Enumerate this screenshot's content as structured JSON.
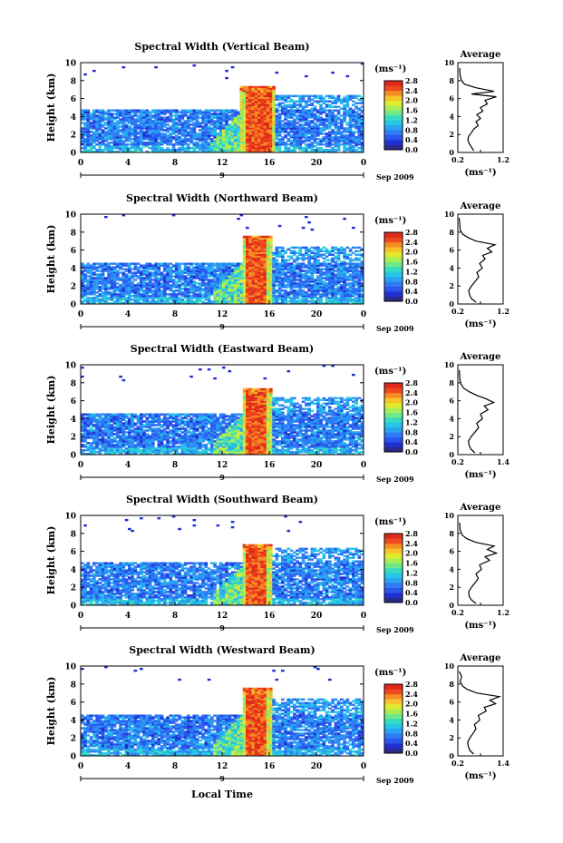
{
  "figure": {
    "x_axis_label": "Local Time",
    "x_date_suffix": "Sep 2009",
    "day_label": "9"
  },
  "colors": {
    "colormap": [
      "#2a2a8a",
      "#1f2fd0",
      "#2a55ee",
      "#2f7af5",
      "#29a3f2",
      "#26c7e6",
      "#34dcc0",
      "#6fe88a",
      "#a8ee55",
      "#e0ea2e",
      "#f6c42a",
      "#f78c24",
      "#ef4a1e",
      "#e02a1a"
    ],
    "background": "#ffffff"
  },
  "chart_data": [
    {
      "type": "heatmap",
      "title": "Spectral Width (Vertical Beam)",
      "xlabel": "",
      "ylabel": "Height (km)",
      "x_ticks": [
        "0",
        "4",
        "8",
        "12",
        "16",
        "20",
        "0"
      ],
      "xlim": [
        0,
        24
      ],
      "y_ticks": [
        "0",
        "2",
        "4",
        "6",
        "8",
        "10"
      ],
      "ylim": [
        0,
        10
      ],
      "date": "Sep 2009",
      "day": "9",
      "colorbar": {
        "unit": "(ms⁻¹)",
        "ticks": [
          "0.0",
          "0.4",
          "0.8",
          "1.2",
          "1.6",
          "2.0",
          "2.4",
          "2.8"
        ],
        "range": [
          0,
          2.8
        ]
      },
      "profile": {
        "title": "Average",
        "xlabel": "(ms⁻¹)",
        "x_ticks": [
          "0.2",
          "0.7",
          "1.2"
        ],
        "xlim": [
          0.2,
          1.2
        ],
        "y_ticks": [
          "0",
          "2",
          "4",
          "6",
          "8",
          "10"
        ],
        "ylim": [
          0,
          10
        ],
        "points": [
          [
            0.55,
            0.2
          ],
          [
            0.5,
            0.6
          ],
          [
            0.45,
            1.0
          ],
          [
            0.42,
            1.4
          ],
          [
            0.44,
            1.8
          ],
          [
            0.5,
            2.2
          ],
          [
            0.55,
            2.6
          ],
          [
            0.65,
            3.0
          ],
          [
            0.6,
            3.4
          ],
          [
            0.7,
            3.8
          ],
          [
            0.62,
            4.2
          ],
          [
            0.75,
            4.6
          ],
          [
            0.7,
            5.0
          ],
          [
            0.85,
            5.4
          ],
          [
            0.8,
            5.8
          ],
          [
            1.05,
            6.2
          ],
          [
            0.5,
            6.5
          ],
          [
            1.0,
            6.8
          ],
          [
            0.6,
            7.2
          ],
          [
            0.35,
            7.6
          ],
          [
            0.28,
            8.0
          ],
          [
            0.25,
            8.6
          ],
          [
            0.24,
            9.4
          ]
        ]
      },
      "field": {
        "base_max_km": 4.8,
        "base_width": 0.7,
        "storm_start": 13.5,
        "storm_end": 16.3,
        "storm_top_km": 7.3,
        "storm_core_width": 2.8
      }
    },
    {
      "type": "heatmap",
      "title": "Spectral Width (Northward Beam)",
      "xlabel": "",
      "ylabel": "Height (km)",
      "x_ticks": [
        "0",
        "4",
        "8",
        "12",
        "16",
        "20",
        "0"
      ],
      "xlim": [
        0,
        24
      ],
      "y_ticks": [
        "0",
        "2",
        "4",
        "6",
        "8",
        "10"
      ],
      "ylim": [
        0,
        10
      ],
      "date": "Sep 2009",
      "day": "9",
      "colorbar": {
        "unit": "(ms⁻¹)",
        "ticks": [
          "0.0",
          "0.4",
          "0.8",
          "1.2",
          "1.6",
          "2.0",
          "2.4",
          "2.8"
        ],
        "range": [
          0,
          2.8
        ]
      },
      "profile": {
        "title": "Average",
        "xlabel": "(ms⁻¹)",
        "x_ticks": [
          "0.2",
          "0.7",
          "1.2"
        ],
        "xlim": [
          0.2,
          1.2
        ],
        "y_ticks": [
          "0",
          "2",
          "4",
          "6",
          "8",
          "10"
        ],
        "ylim": [
          0,
          10
        ],
        "points": [
          [
            0.6,
            0.2
          ],
          [
            0.5,
            0.6
          ],
          [
            0.46,
            1.0
          ],
          [
            0.44,
            1.5
          ],
          [
            0.5,
            2.0
          ],
          [
            0.58,
            2.5
          ],
          [
            0.66,
            3.0
          ],
          [
            0.62,
            3.5
          ],
          [
            0.74,
            4.0
          ],
          [
            0.68,
            4.5
          ],
          [
            0.8,
            5.0
          ],
          [
            0.75,
            5.4
          ],
          [
            0.95,
            5.8
          ],
          [
            0.85,
            6.2
          ],
          [
            1.02,
            6.6
          ],
          [
            0.6,
            7.0
          ],
          [
            0.42,
            7.4
          ],
          [
            0.3,
            7.8
          ],
          [
            0.25,
            8.3
          ],
          [
            0.24,
            9.0
          ],
          [
            0.23,
            9.6
          ]
        ]
      },
      "field": {
        "base_max_km": 4.6,
        "base_width": 0.7,
        "storm_start": 13.6,
        "storm_end": 16.0,
        "storm_top_km": 7.6,
        "storm_core_width": 2.8
      }
    },
    {
      "type": "heatmap",
      "title": "Spectral Width (Eastward Beam)",
      "xlabel": "",
      "ylabel": "Height (km)",
      "x_ticks": [
        "0",
        "4",
        "8",
        "12",
        "16",
        "20",
        "0"
      ],
      "xlim": [
        0,
        24
      ],
      "y_ticks": [
        "0",
        "2",
        "4",
        "6",
        "8",
        "10"
      ],
      "ylim": [
        0,
        10
      ],
      "date": "Sep 2009",
      "day": "9",
      "colorbar": {
        "unit": "(ms⁻¹)",
        "ticks": [
          "0.0",
          "0.4",
          "0.8",
          "1.2",
          "1.6",
          "2.0",
          "2.4",
          "2.8"
        ],
        "range": [
          0,
          2.8
        ]
      },
      "profile": {
        "title": "Average",
        "xlabel": "(ms⁻¹)",
        "x_ticks": [
          "0.2",
          "0.8",
          "1.4"
        ],
        "xlim": [
          0.2,
          1.4
        ],
        "y_ticks": [
          "0",
          "2",
          "4",
          "6",
          "8",
          "10"
        ],
        "ylim": [
          0,
          10
        ],
        "points": [
          [
            0.65,
            0.2
          ],
          [
            0.55,
            0.6
          ],
          [
            0.5,
            1.0
          ],
          [
            0.48,
            1.5
          ],
          [
            0.55,
            2.0
          ],
          [
            0.65,
            2.5
          ],
          [
            0.75,
            3.0
          ],
          [
            0.7,
            3.5
          ],
          [
            0.85,
            4.0
          ],
          [
            0.8,
            4.5
          ],
          [
            1.0,
            5.0
          ],
          [
            0.9,
            5.4
          ],
          [
            1.15,
            5.8
          ],
          [
            0.95,
            6.2
          ],
          [
            0.7,
            6.6
          ],
          [
            0.5,
            7.0
          ],
          [
            0.35,
            7.4
          ],
          [
            0.28,
            7.9
          ],
          [
            0.25,
            8.5
          ],
          [
            0.24,
            9.4
          ]
        ]
      },
      "field": {
        "base_max_km": 4.4,
        "base_width": 0.7,
        "storm_start": 13.6,
        "storm_end": 16.0,
        "storm_top_km": 7.2,
        "storm_core_width": 2.8
      }
    },
    {
      "type": "heatmap",
      "title": "Spectral Width (Southward Beam)",
      "xlabel": "",
      "ylabel": "Height (km)",
      "x_ticks": [
        "0",
        "4",
        "8",
        "12",
        "16",
        "20",
        "0"
      ],
      "xlim": [
        0,
        24
      ],
      "y_ticks": [
        "0",
        "2",
        "4",
        "6",
        "8",
        "10"
      ],
      "ylim": [
        0,
        10
      ],
      "date": "Sep 2009",
      "day": "9",
      "colorbar": {
        "unit": "(ms⁻¹)",
        "ticks": [
          "0.0",
          "0.4",
          "0.8",
          "1.2",
          "1.6",
          "2.0",
          "2.4",
          "2.8"
        ],
        "range": [
          0,
          2.8
        ]
      },
      "profile": {
        "title": "Average",
        "xlabel": "(ms⁻¹)",
        "x_ticks": [
          "0.2",
          "0.7",
          "1.2"
        ],
        "xlim": [
          0.2,
          1.2
        ],
        "y_ticks": [
          "0",
          "2",
          "4",
          "6",
          "8",
          "10"
        ],
        "ylim": [
          0,
          10
        ],
        "points": [
          [
            0.6,
            0.2
          ],
          [
            0.5,
            0.6
          ],
          [
            0.45,
            1.0
          ],
          [
            0.44,
            1.5
          ],
          [
            0.5,
            2.0
          ],
          [
            0.58,
            2.5
          ],
          [
            0.65,
            3.0
          ],
          [
            0.6,
            3.5
          ],
          [
            0.72,
            4.0
          ],
          [
            0.68,
            4.5
          ],
          [
            0.9,
            5.0
          ],
          [
            0.8,
            5.4
          ],
          [
            1.05,
            5.8
          ],
          [
            0.85,
            6.2
          ],
          [
            1.0,
            6.6
          ],
          [
            0.6,
            7.0
          ],
          [
            0.4,
            7.4
          ],
          [
            0.3,
            7.8
          ],
          [
            0.25,
            8.4
          ],
          [
            0.24,
            9.2
          ]
        ]
      },
      "field": {
        "base_max_km": 4.8,
        "base_width": 0.7,
        "storm_start": 13.6,
        "storm_end": 16.0,
        "storm_top_km": 6.8,
        "storm_core_width": 2.8
      }
    },
    {
      "type": "heatmap",
      "title": "Spectral Width (Westward Beam)",
      "xlabel": "Local Time",
      "ylabel": "Height (km)",
      "x_ticks": [
        "0",
        "4",
        "8",
        "12",
        "16",
        "20",
        "0"
      ],
      "xlim": [
        0,
        24
      ],
      "y_ticks": [
        "0",
        "2",
        "4",
        "6",
        "8",
        "10"
      ],
      "ylim": [
        0,
        10
      ],
      "date": "Sep 2009",
      "day": "9",
      "colorbar": {
        "unit": "(ms⁻¹)",
        "ticks": [
          "0.0",
          "0.4",
          "0.8",
          "1.2",
          "1.6",
          "2.0",
          "2.4",
          "2.8"
        ],
        "range": [
          0,
          2.8
        ]
      },
      "profile": {
        "title": "Average",
        "xlabel": "(ms⁻¹)",
        "x_ticks": [
          "0.2",
          "0.8",
          "1.4"
        ],
        "xlim": [
          0.2,
          1.4
        ],
        "y_ticks": [
          "0",
          "2",
          "4",
          "6",
          "8",
          "10"
        ],
        "ylim": [
          0,
          10
        ],
        "points": [
          [
            0.62,
            0.2
          ],
          [
            0.52,
            0.6
          ],
          [
            0.48,
            1.0
          ],
          [
            0.46,
            1.5
          ],
          [
            0.52,
            2.0
          ],
          [
            0.6,
            2.5
          ],
          [
            0.68,
            3.0
          ],
          [
            0.64,
            3.5
          ],
          [
            0.78,
            4.0
          ],
          [
            0.74,
            4.5
          ],
          [
            0.95,
            5.0
          ],
          [
            0.9,
            5.4
          ],
          [
            1.2,
            5.8
          ],
          [
            1.05,
            6.2
          ],
          [
            1.3,
            6.6
          ],
          [
            0.7,
            7.0
          ],
          [
            0.45,
            7.4
          ],
          [
            0.32,
            7.8
          ],
          [
            0.26,
            8.3
          ],
          [
            0.3,
            8.8
          ],
          [
            0.24,
            9.4
          ]
        ]
      },
      "field": {
        "base_max_km": 4.6,
        "base_width": 0.7,
        "storm_start": 13.6,
        "storm_end": 16.0,
        "storm_top_km": 7.4,
        "storm_core_width": 2.8
      }
    }
  ]
}
